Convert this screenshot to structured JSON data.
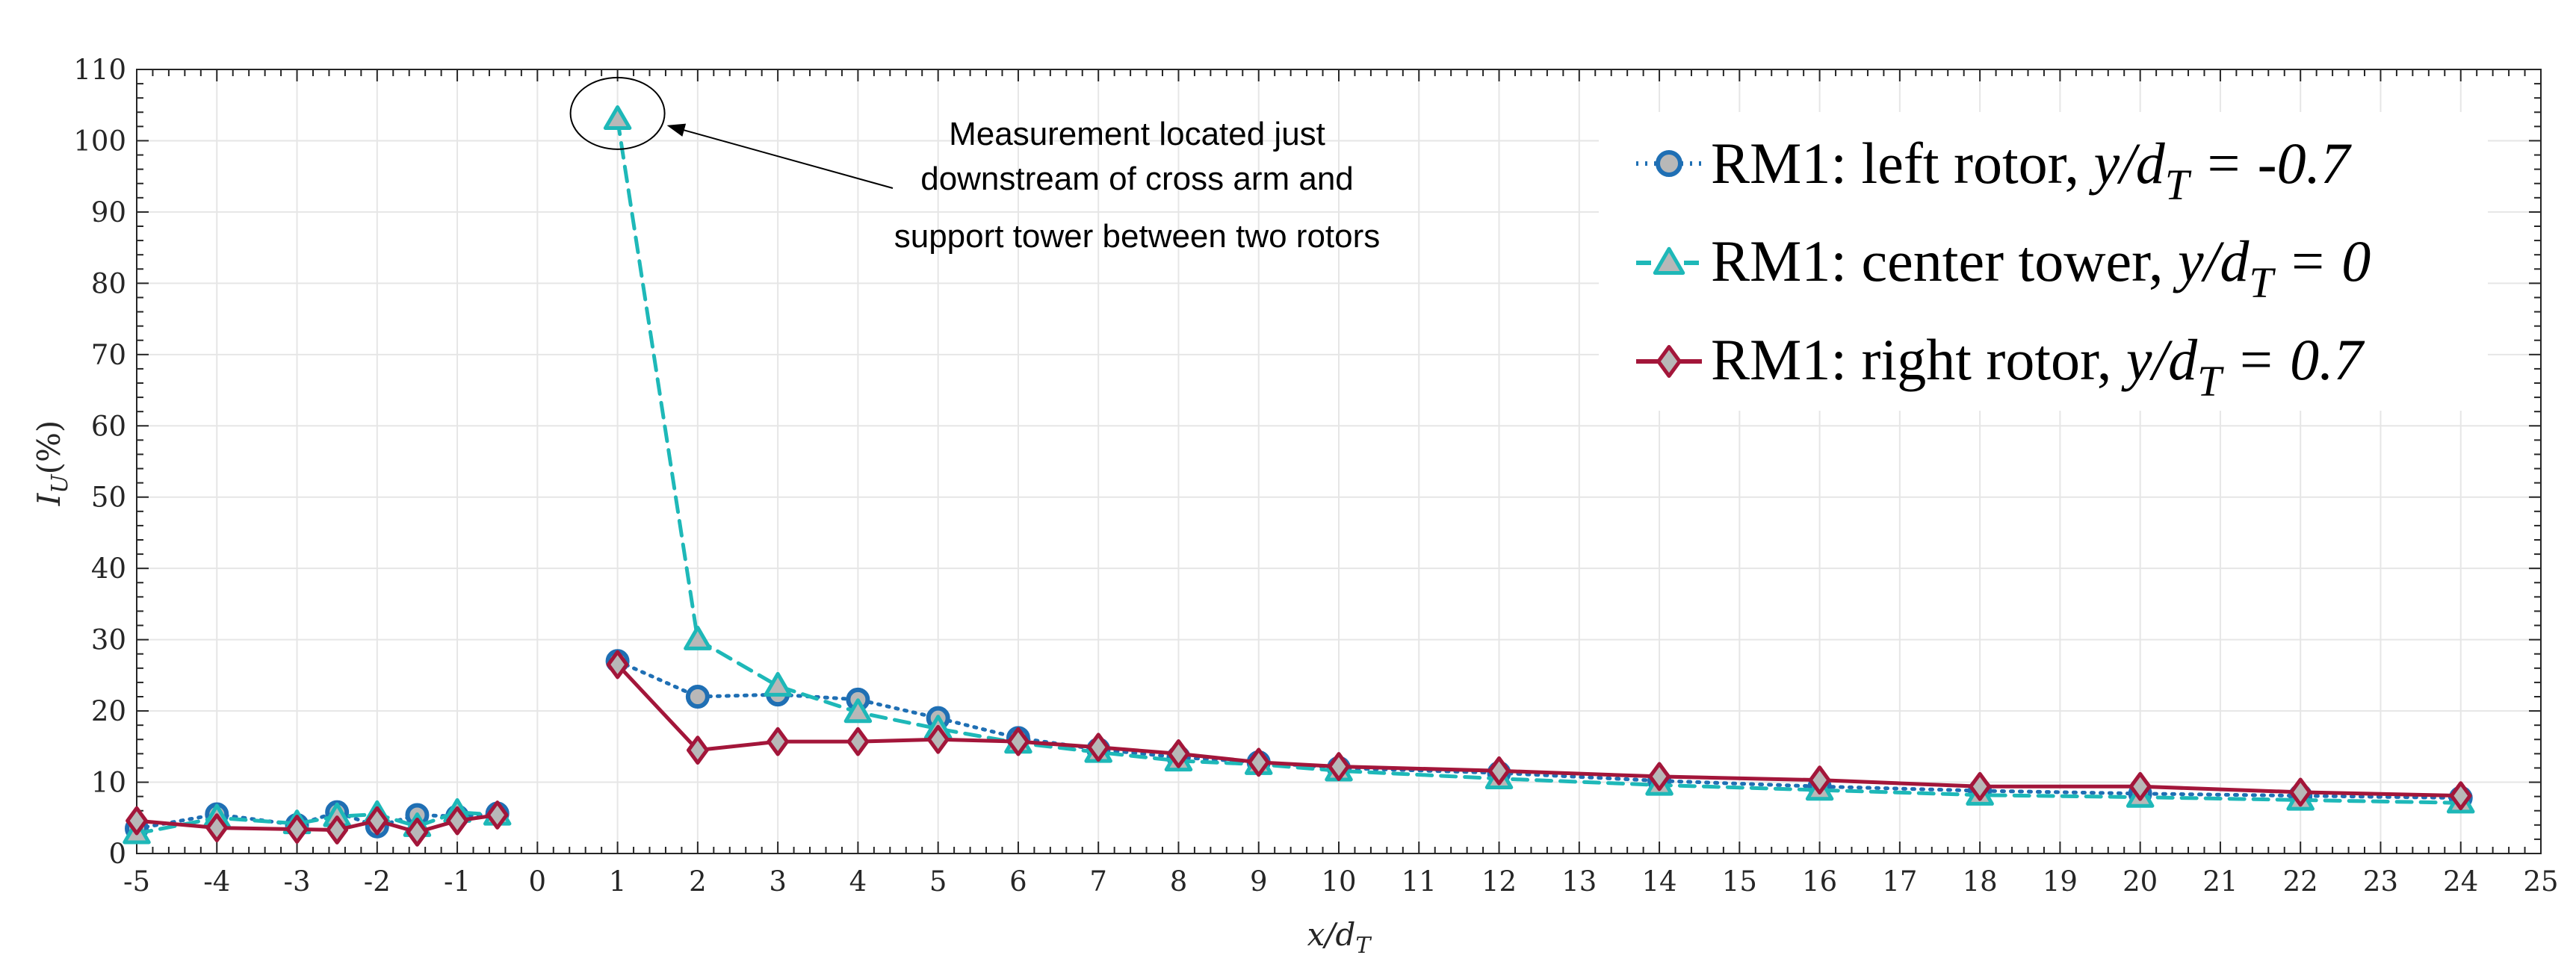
{
  "chart_data": {
    "type": "line",
    "title": "",
    "xlabel": "x/d",
    "xlabel_sub": "T",
    "ylabel": "I",
    "ylabel_sub": "U",
    "ylabel_suffix": "(%)",
    "xlim": [
      -5,
      25
    ],
    "ylim": [
      0,
      110
    ],
    "xticks": [
      -5,
      -4,
      -3,
      -2,
      -1,
      0,
      1,
      2,
      3,
      4,
      5,
      6,
      7,
      8,
      9,
      10,
      11,
      12,
      13,
      14,
      15,
      16,
      17,
      18,
      19,
      20,
      21,
      22,
      23,
      24,
      25
    ],
    "yticks": [
      0,
      10,
      20,
      30,
      40,
      50,
      60,
      70,
      80,
      90,
      100,
      110
    ],
    "grid": true,
    "legend_position": "top-right",
    "series": [
      {
        "name": "RM1: left rotor, y/dT = -0.7",
        "legend_prefix": "RM1: left rotor, ",
        "legend_var": "y/d",
        "legend_sub": "T",
        "legend_suffix": " = -0.7",
        "color": "#1f6fb4",
        "marker": "circle",
        "linestyle": "dotted",
        "x": [
          -5,
          -4,
          -3,
          -2.5,
          -2,
          -1.5,
          -1,
          -0.5,
          1,
          2,
          3,
          4,
          5,
          6,
          7,
          8,
          9,
          10,
          12,
          14,
          16,
          18,
          20,
          22,
          24
        ],
        "y": [
          3.5,
          5.5,
          4.0,
          5.8,
          3.8,
          5.4,
          5.2,
          5.6,
          27.0,
          22.0,
          22.3,
          21.6,
          19.0,
          16.2,
          14.6,
          13.5,
          12.8,
          12.0,
          11.3,
          10.2,
          9.4,
          8.8,
          8.4,
          8.1,
          7.8
        ]
      },
      {
        "name": "RM1: center tower, y/dT = 0",
        "legend_prefix": "RM1: center tower, ",
        "legend_var": "y/d",
        "legend_sub": "T",
        "legend_suffix": " = 0",
        "color": "#1eb8b8",
        "marker": "triangle",
        "linestyle": "dashed",
        "x": [
          -5,
          -4,
          -3,
          -2.5,
          -2,
          -1.5,
          -1,
          -0.5,
          1,
          2,
          3,
          4,
          5,
          6,
          7,
          8,
          9,
          10,
          12,
          14,
          16,
          18,
          20,
          22,
          24
        ],
        "y": [
          2.8,
          5.0,
          4.2,
          5.2,
          5.5,
          3.8,
          5.8,
          5.4,
          103.0,
          30.0,
          23.5,
          19.8,
          17.5,
          15.5,
          14.2,
          13.0,
          12.5,
          11.6,
          10.5,
          9.6,
          8.9,
          8.2,
          7.9,
          7.5,
          7.1
        ]
      },
      {
        "name": "RM1: right rotor, y/dT = 0.7",
        "legend_prefix": "RM1: right rotor, ",
        "legend_var": "y/d",
        "legend_sub": "T",
        "legend_suffix": " = 0.7",
        "color": "#a3163a",
        "marker": "diamond",
        "linestyle": "solid",
        "x": [
          -5,
          -4,
          -3,
          -2.5,
          -2,
          -1.5,
          -1,
          -0.5,
          1,
          2,
          3,
          4,
          5,
          6,
          7,
          8,
          9,
          10,
          12,
          14,
          16,
          18,
          20,
          22,
          24
        ],
        "y": [
          4.6,
          3.6,
          3.4,
          3.3,
          4.6,
          3.0,
          4.6,
          5.4,
          26.5,
          14.5,
          15.7,
          15.7,
          16.0,
          15.7,
          14.9,
          14.0,
          12.8,
          12.2,
          11.6,
          10.8,
          10.3,
          9.4,
          9.4,
          8.6,
          8.1
        ]
      }
    ],
    "annotation": {
      "lines": [
        "Measurement located just",
        "downstream of cross arm and",
        "support tower between two rotors"
      ],
      "target_x": 1,
      "target_y": 103
    }
  }
}
